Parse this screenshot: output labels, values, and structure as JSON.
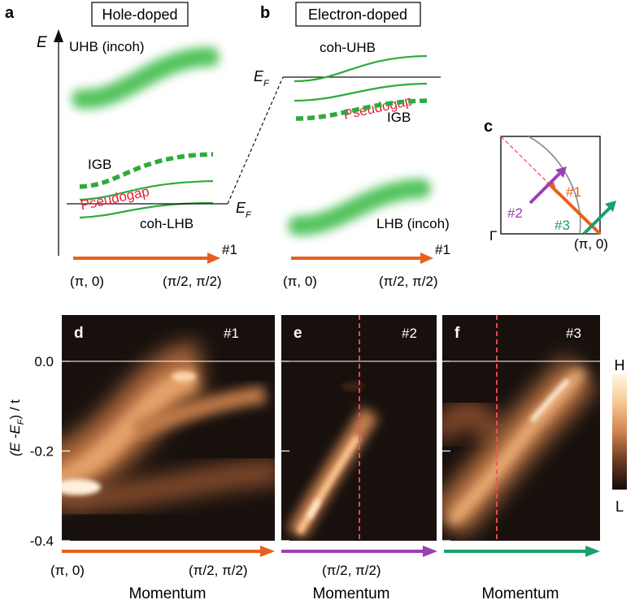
{
  "panel_letters": {
    "a": "a",
    "b": "b",
    "c": "c",
    "d": "d",
    "e": "e",
    "f": "f"
  },
  "panel_a": {
    "title": "Hole-doped",
    "energy_axis": "E",
    "upper_band": "UHB (incoh)",
    "ingap_band": "IGB",
    "pseudogap": "Pseudogap",
    "coherent_band": "coh-LHB",
    "fermi_E": "E",
    "fermi_sub": "F",
    "cut_label": "#1",
    "k_start": "(π, 0)",
    "k_end": "(π/2, π/2)"
  },
  "panel_b": {
    "title": "Electron-doped",
    "fermi_E": "E",
    "fermi_sub": "F",
    "coherent_band": "coh-UHB",
    "pseudogap": "Pseudogap",
    "ingap_band": "IGB",
    "lower_band": "LHB (incoh)",
    "cut_label": "#1",
    "k_start": "(π, 0)",
    "k_end": "(π/2, π/2)"
  },
  "panel_c": {
    "gamma": "Γ",
    "corner": "(π, 0)",
    "cuts": [
      "#1",
      "#2",
      "#3"
    ]
  },
  "colors": {
    "cut1": "#e8601c",
    "cut2": "#9b3fb5",
    "cut3": "#1aa06a",
    "band_green": "#2ca02c",
    "pseudogap_red": "#e8203a",
    "marker_red": "#ff4a5a"
  },
  "spectra": {
    "ylabel_main": "(E -E",
    "ylabel_sub": "F",
    "ylabel_tail": ") / t",
    "yticks": [
      "0.0",
      "-0.2",
      "-0.4"
    ],
    "ytick_values": [
      0.0,
      -0.2,
      -0.4
    ],
    "ylim": [
      -0.4,
      0.05
    ],
    "panels": [
      {
        "letter": "d",
        "cut": "#1"
      },
      {
        "letter": "e",
        "cut": "#2"
      },
      {
        "letter": "f",
        "cut": "#3"
      }
    ],
    "xlabel_d": "Momentum",
    "xlabel_e": "Momentum",
    "xlabel_f": "Momentum",
    "k_labels": [
      "(π, 0)",
      "(π/2, π/2)",
      "(π/2, π/2)"
    ]
  },
  "colorbar": {
    "high": "H",
    "low": "L"
  }
}
